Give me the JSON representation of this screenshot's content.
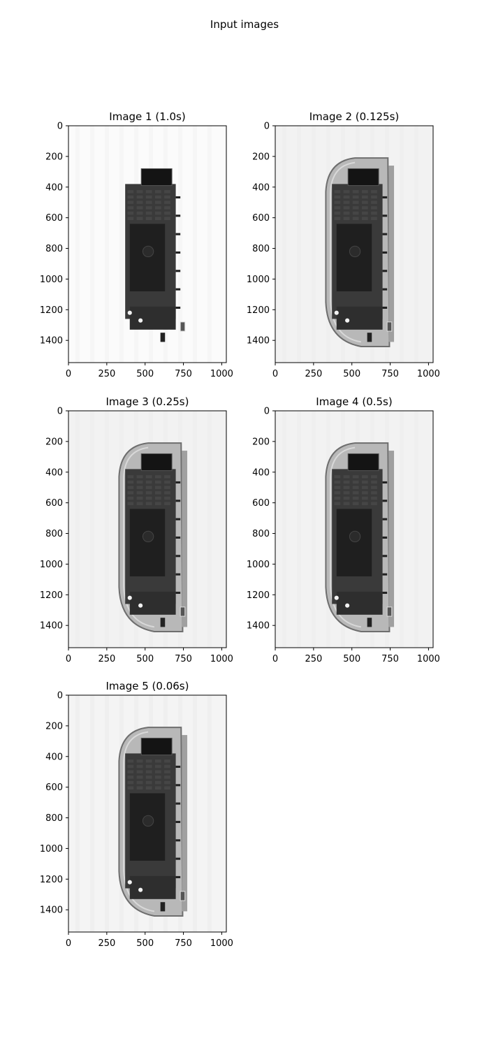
{
  "figure": {
    "title": "Input images"
  },
  "panels": [
    {
      "title": "Image 1 (1.0s)",
      "variant": "overexposed"
    },
    {
      "title": "Image 2 (0.125s)",
      "variant": "normal"
    },
    {
      "title": "Image 3 (0.25s)",
      "variant": "normal"
    },
    {
      "title": "Image 4 (0.5s)",
      "variant": "normal"
    },
    {
      "title": "Image 5 (0.06s)",
      "variant": "noisy"
    }
  ],
  "axes": {
    "xlim": [
      0,
      1030
    ],
    "ylim": [
      1545,
      0
    ],
    "x_ticks": [
      0,
      250,
      500,
      750,
      1000
    ],
    "y_ticks": [
      0,
      200,
      400,
      600,
      800,
      1000,
      1200,
      1400
    ]
  },
  "colors": {
    "background_gray": "#f2f2f2",
    "device_shell": "#8c8c8c",
    "board_dark": "#1f1f1f",
    "board_mid": "#3a3a3a"
  }
}
